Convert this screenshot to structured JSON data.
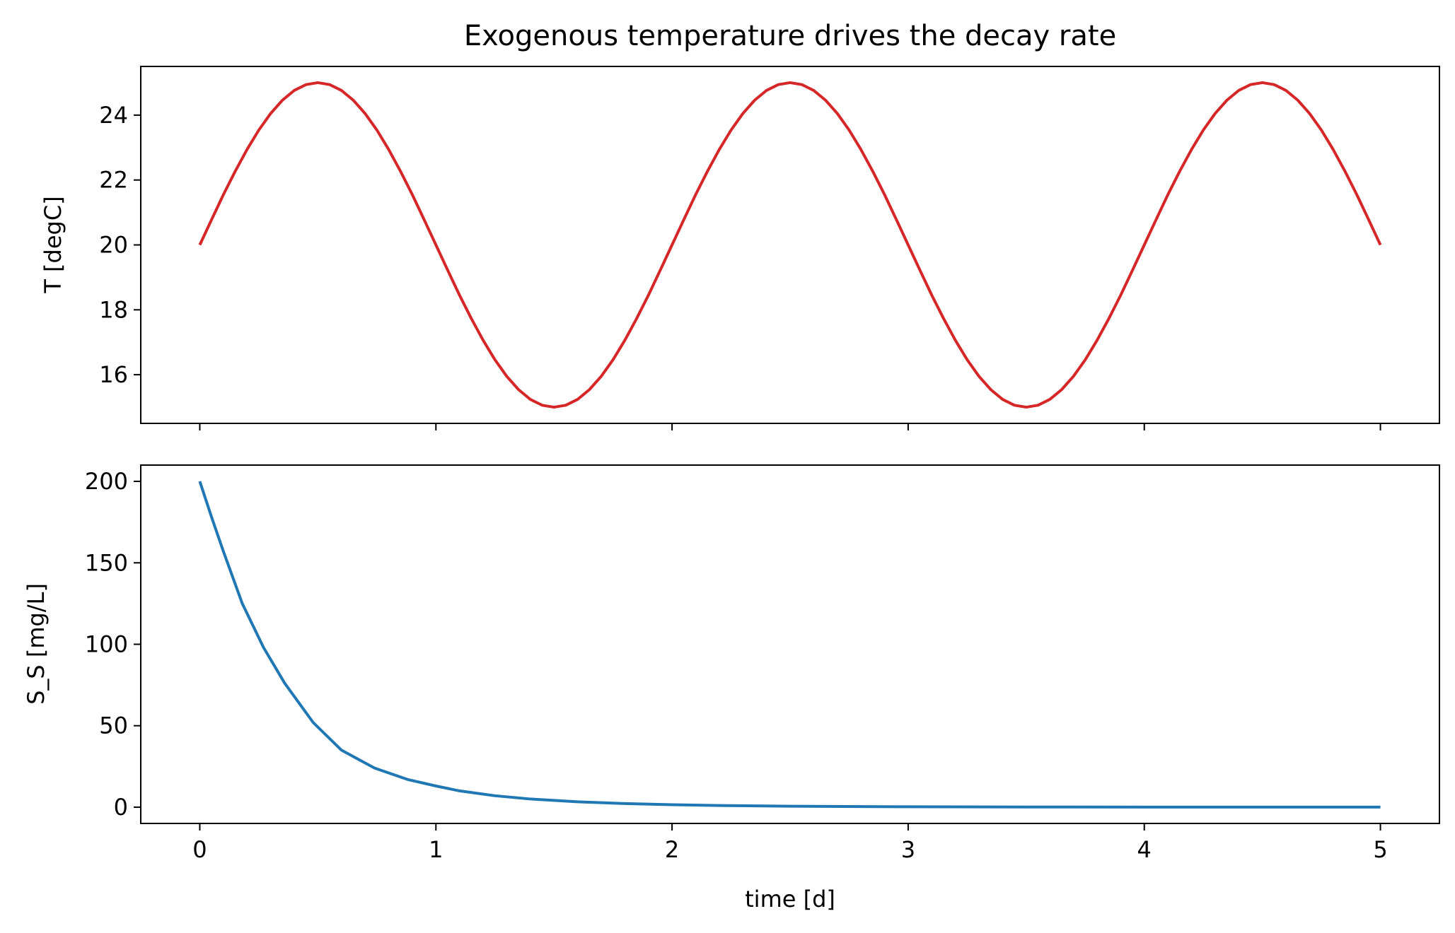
{
  "chart_data": [
    {
      "type": "line",
      "title": "Exogenous temperature drives the decay rate",
      "xlabel": "",
      "ylabel": "T [degC]",
      "xlim": [
        -0.25,
        5.25
      ],
      "ylim": [
        14.5,
        25.5
      ],
      "xticks": [
        0,
        1,
        2,
        3,
        4,
        5
      ],
      "xtick_labels_shown": false,
      "yticks": [
        16,
        18,
        20,
        22,
        24
      ],
      "grid": false,
      "series": [
        {
          "color": "#d62728",
          "x": [
            0,
            0.05,
            0.1,
            0.15,
            0.2,
            0.25,
            0.3,
            0.35,
            0.4,
            0.45,
            0.5,
            0.55,
            0.6,
            0.65,
            0.7,
            0.75,
            0.8,
            0.85,
            0.9,
            0.95,
            1.0,
            1.05,
            1.1,
            1.15,
            1.2,
            1.25,
            1.3,
            1.35,
            1.4,
            1.45,
            1.5,
            1.55,
            1.6,
            1.65,
            1.7,
            1.75,
            1.8,
            1.85,
            1.9,
            1.95,
            2.0,
            2.05,
            2.1,
            2.15,
            2.2,
            2.25,
            2.3,
            2.35,
            2.4,
            2.45,
            2.5,
            2.55,
            2.6,
            2.65,
            2.7,
            2.75,
            2.8,
            2.85,
            2.9,
            2.95,
            3.0,
            3.05,
            3.1,
            3.15,
            3.2,
            3.25,
            3.3,
            3.35,
            3.4,
            3.45,
            3.5,
            3.55,
            3.6,
            3.65,
            3.7,
            3.75,
            3.8,
            3.85,
            3.9,
            3.95,
            4.0,
            4.05,
            4.1,
            4.15,
            4.2,
            4.25,
            4.3,
            4.35,
            4.4,
            4.45,
            4.5,
            4.55,
            4.6,
            4.65,
            4.7,
            4.75,
            4.8,
            4.85,
            4.9,
            4.95,
            5.0
          ],
          "y": [
            20.0,
            20.78,
            21.55,
            22.27,
            22.94,
            23.54,
            24.05,
            24.46,
            24.76,
            24.94,
            25.0,
            24.94,
            24.76,
            24.46,
            24.05,
            23.54,
            22.94,
            22.27,
            21.55,
            20.78,
            20.0,
            19.22,
            18.45,
            17.73,
            17.06,
            16.46,
            15.95,
            15.54,
            15.24,
            15.06,
            15.0,
            15.06,
            15.24,
            15.54,
            15.95,
            16.46,
            17.06,
            17.73,
            18.45,
            19.22,
            20.0,
            20.78,
            21.55,
            22.27,
            22.94,
            23.54,
            24.05,
            24.46,
            24.76,
            24.94,
            25.0,
            24.94,
            24.76,
            24.46,
            24.05,
            23.54,
            22.94,
            22.27,
            21.55,
            20.78,
            20.0,
            19.22,
            18.45,
            17.73,
            17.06,
            16.46,
            15.95,
            15.54,
            15.24,
            15.06,
            15.0,
            15.06,
            15.24,
            15.54,
            15.95,
            16.46,
            17.06,
            17.73,
            18.45,
            19.22,
            20.0,
            20.78,
            21.55,
            22.27,
            22.94,
            23.54,
            24.05,
            24.46,
            24.76,
            24.94,
            25.0,
            24.94,
            24.76,
            24.46,
            24.05,
            23.54,
            22.94,
            22.27,
            21.55,
            20.78,
            20.0
          ]
        }
      ]
    },
    {
      "type": "line",
      "title": "",
      "xlabel": "time [d]",
      "ylabel": "S_S [mg/L]",
      "xlim": [
        -0.25,
        5.25
      ],
      "ylim": [
        -10,
        210
      ],
      "xticks": [
        0,
        1,
        2,
        3,
        4,
        5
      ],
      "yticks": [
        0,
        50,
        100,
        150,
        200
      ],
      "grid": false,
      "series": [
        {
          "color": "#1f77b4",
          "x": [
            0,
            0.05,
            0.1,
            0.18,
            0.27,
            0.36,
            0.48,
            0.6,
            0.74,
            0.88,
            1.0,
            1.1,
            1.25,
            1.4,
            1.6,
            1.8,
            2.0,
            2.2,
            2.5,
            2.8,
            3.0,
            3.5,
            4.0,
            4.5,
            5.0
          ],
          "y": [
            200,
            178,
            157,
            125,
            98,
            76,
            52,
            35,
            24,
            17,
            13,
            10,
            7,
            5,
            3.3,
            2.2,
            1.5,
            1.0,
            0.6,
            0.35,
            0.25,
            0.1,
            0.05,
            0.02,
            0.01
          ]
        }
      ]
    }
  ],
  "tick_labels": {
    "top_y": [
      "16",
      "18",
      "20",
      "22",
      "24"
    ],
    "bottom_y": [
      "0",
      "50",
      "100",
      "150",
      "200"
    ],
    "bottom_x": [
      "0",
      "1",
      "2",
      "3",
      "4",
      "5"
    ]
  }
}
